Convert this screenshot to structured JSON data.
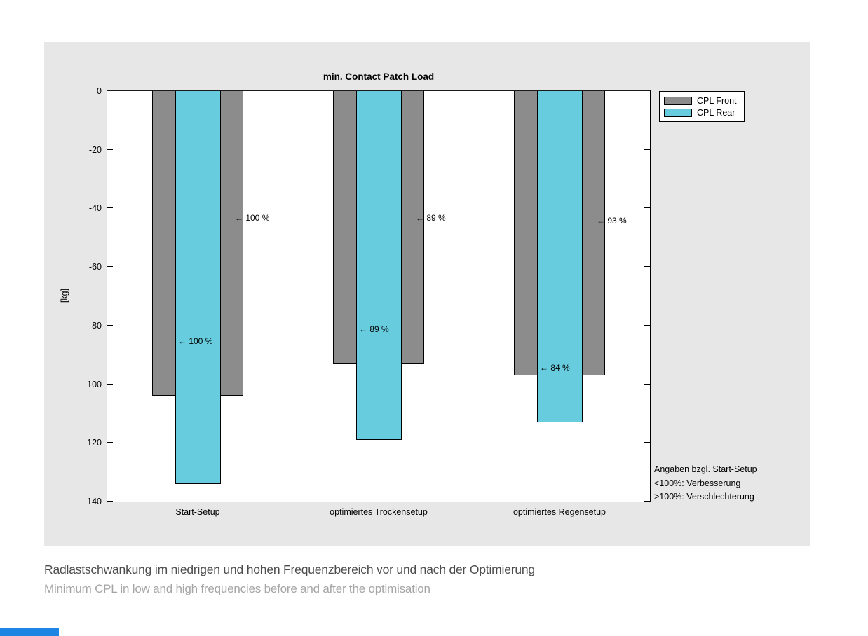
{
  "figure": {
    "background": "#e7e7e7"
  },
  "chart_data": {
    "type": "bar",
    "title": "min. Contact Patch Load",
    "ylabel": "[kg]",
    "ylim": [
      -140,
      0
    ],
    "yticks": [
      0,
      -20,
      -40,
      -60,
      -80,
      -100,
      -120,
      -140
    ],
    "grid": false,
    "categories": [
      "Start-Setup",
      "optimiertes Trockensetup",
      "optimiertes Regensetup"
    ],
    "series": [
      {
        "name": "CPL Front",
        "color": "#8c8c8c",
        "values": [
          -104,
          -93,
          -97
        ]
      },
      {
        "name": "CPL Rear",
        "color": "#66ccde",
        "values": [
          -134,
          -119,
          -113
        ]
      }
    ],
    "legend": {
      "position": "top-right-outside",
      "entries": [
        "CPL Front",
        "CPL Rear"
      ]
    },
    "annotations": {
      "front": [
        {
          "text": "← 100 %",
          "y": -43.5
        },
        {
          "text": "← 89 %",
          "y": -43.5
        },
        {
          "text": "← 93 %",
          "y": -44.5
        }
      ],
      "rear": [
        {
          "text": "← 100 %",
          "y": -85.5
        },
        {
          "text": "← 89 %",
          "y": -81.5
        },
        {
          "text": "← 84 %",
          "y": -94.5
        }
      ]
    },
    "note_lines": [
      "Angaben bzgl. Start-Setup",
      "<100%: Verbesserung",
      ">100%: Verschlechterung"
    ]
  },
  "caption": {
    "line1": "Radlastschwankung im niedrigen und hohen Frequenzbereich vor und nach der Optimierung",
    "line2": "Minimum CPL in low and high frequencies before and after the optimisation"
  },
  "footer": {
    "accent_color": "#1d86e3"
  }
}
